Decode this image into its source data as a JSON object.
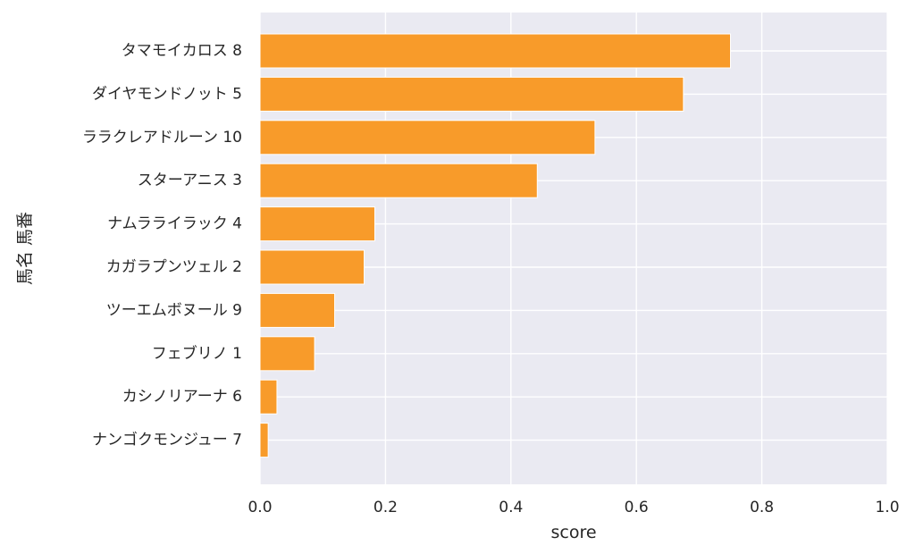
{
  "chart_data": {
    "type": "bar",
    "orientation": "horizontal",
    "categories": [
      "タマモイカロス 8",
      "ダイヤモンドノット 5",
      "ララクレアドルーン 10",
      "スターアニス 3",
      "ナムラライラック 4",
      "カガラプンツェル 2",
      "ツーエムボヌール 9",
      "フェブリノ 1",
      "カシノリアーナ 6",
      "ナンゴクモンジュー 7"
    ],
    "values": [
      0.75,
      0.675,
      0.534,
      0.442,
      0.183,
      0.166,
      0.119,
      0.087,
      0.027,
      0.013
    ],
    "xlabel": "score",
    "ylabel": "馬名 馬番",
    "xlim": [
      0.0,
      1.0
    ],
    "xticks": [
      "0.0",
      "0.2",
      "0.4",
      "0.6",
      "0.8",
      "1.0"
    ],
    "grid": true,
    "colors": {
      "bar": "#f89b2a",
      "bar_edge": "#ffffff",
      "plot_background": "#eaeaf2",
      "grid": "#ffffff"
    }
  }
}
